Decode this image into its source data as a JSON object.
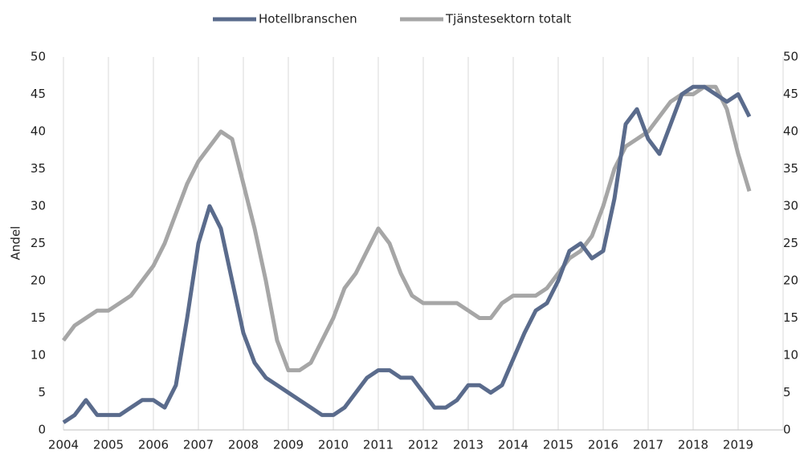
{
  "chart_data": {
    "type": "line",
    "ylabel": "Andel",
    "x": [
      2004,
      2004.25,
      2004.5,
      2004.75,
      2005,
      2005.25,
      2005.5,
      2005.75,
      2006,
      2006.25,
      2006.5,
      2006.75,
      2007,
      2007.25,
      2007.5,
      2007.75,
      2008,
      2008.25,
      2008.5,
      2008.75,
      2009,
      2009.25,
      2009.5,
      2009.75,
      2010,
      2010.25,
      2010.5,
      2010.75,
      2011,
      2011.25,
      2011.5,
      2011.75,
      2012,
      2012.25,
      2012.5,
      2012.75,
      2013,
      2013.25,
      2013.5,
      2013.75,
      2014,
      2014.25,
      2014.5,
      2014.75,
      2015,
      2015.25,
      2015.5,
      2015.75,
      2016,
      2016.25,
      2016.5,
      2016.75,
      2017,
      2017.25,
      2017.5,
      2017.75,
      2018,
      2018.25,
      2018.5,
      2018.75,
      2019,
      2019.25
    ],
    "series": [
      {
        "name": "Hotellbranschen",
        "color": "#5a6b8c",
        "values": [
          1,
          2,
          4,
          2,
          2,
          2,
          3,
          4,
          4,
          3,
          6,
          15,
          25,
          30,
          27,
          20,
          13,
          9,
          7,
          6,
          5,
          4,
          3,
          2,
          2,
          3,
          5,
          7,
          8,
          8,
          7,
          7,
          5,
          3,
          3,
          4,
          6,
          6,
          5,
          6,
          9.5,
          13,
          16,
          17,
          20,
          24,
          25,
          23,
          24,
          31,
          41,
          43,
          39,
          37,
          41,
          45,
          46,
          46,
          45,
          44,
          45,
          42
        ]
      },
      {
        "name": "Tjänstesektorn totalt",
        "color": "#a6a6a6",
        "values": [
          12,
          14,
          15,
          16,
          16,
          17,
          18,
          20,
          22,
          25,
          29,
          33,
          36,
          38,
          40,
          39,
          33,
          27,
          20,
          12,
          8,
          8,
          9,
          12,
          15,
          19,
          21,
          24,
          27,
          25,
          21,
          18,
          17,
          17,
          17,
          17,
          16,
          15,
          15,
          17,
          18,
          18,
          18,
          19,
          21,
          23,
          24,
          26,
          30,
          35,
          38,
          39,
          40,
          42,
          44,
          45,
          45,
          46,
          46,
          43,
          37,
          32
        ]
      }
    ],
    "xlim": [
      2004,
      2020
    ],
    "xticks": [
      2004,
      2005,
      2006,
      2007,
      2008,
      2009,
      2010,
      2011,
      2012,
      2013,
      2014,
      2015,
      2016,
      2017,
      2018,
      2019
    ],
    "ylim": [
      0,
      50
    ],
    "yticks": [
      0,
      5,
      10,
      15,
      20,
      25,
      30,
      35,
      40,
      45,
      50
    ],
    "y2lim": [
      0,
      50
    ],
    "y2ticks": [
      0,
      5,
      10,
      15,
      20,
      25,
      30,
      35,
      40,
      45,
      50
    ],
    "grid": true,
    "legend": "top"
  }
}
